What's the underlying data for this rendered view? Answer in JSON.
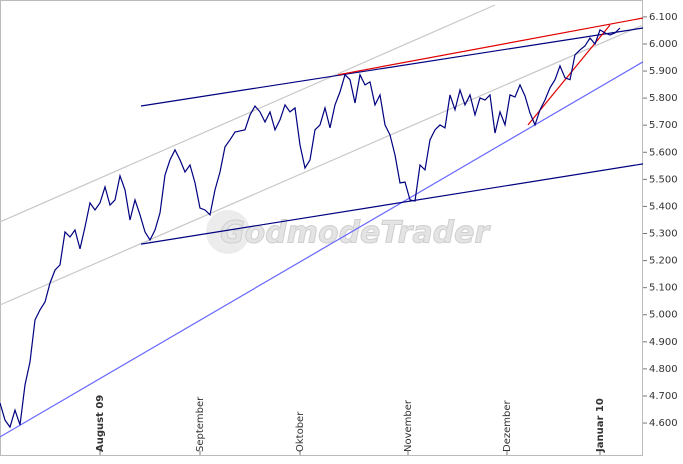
{
  "chart_data": {
    "type": "line",
    "watermark": "GodmodeTrader",
    "x": [
      0,
      1,
      2,
      3,
      4,
      5,
      6,
      7,
      8,
      9,
      10,
      11,
      12,
      13,
      14,
      15,
      16,
      17,
      18,
      19,
      20,
      21,
      22,
      23,
      24,
      25,
      26,
      27,
      28,
      29,
      30,
      31,
      32,
      33,
      34,
      35,
      36,
      37,
      38,
      39,
      40,
      41,
      42,
      43,
      44,
      45,
      46,
      47,
      48,
      49,
      50,
      51,
      52,
      53,
      54,
      55,
      56,
      57,
      58,
      59,
      60,
      61,
      62,
      63,
      64,
      65,
      66,
      67,
      68,
      69,
      70,
      71,
      72,
      73,
      74,
      75,
      76,
      77,
      78,
      79,
      80,
      81,
      82,
      83,
      84,
      85,
      86,
      87,
      88,
      89,
      90,
      91,
      92,
      93,
      94,
      95,
      96,
      97,
      98,
      99,
      100,
      101,
      102,
      103,
      104,
      105,
      106,
      107,
      108,
      109,
      110,
      111,
      112,
      113,
      114,
      115,
      116,
      117,
      118,
      119,
      120,
      121,
      122,
      123,
      124
    ],
    "series": [
      {
        "color": "#000080",
        "values": [
          4674,
          4611,
          4585,
          4648,
          4593,
          4741,
          4826,
          4981,
          5018,
          5047,
          5117,
          5165,
          5184,
          5306,
          5287,
          5313,
          5243,
          5324,
          5413,
          5387,
          5413,
          5472,
          5405,
          5424,
          5513,
          5461,
          5350,
          5424,
          5369,
          5306,
          5276,
          5313,
          5376,
          5516,
          5572,
          5609,
          5572,
          5527,
          5553,
          5487,
          5394,
          5387,
          5369,
          5461,
          5527,
          5620,
          5646,
          5675,
          5679,
          5683,
          5738,
          5771,
          5749,
          5712,
          5749,
          5683,
          5720,
          5775,
          5749,
          5764,
          5627,
          5542,
          5572,
          5683,
          5701,
          5764,
          5690,
          5775,
          5823,
          5886,
          5868,
          5782,
          5886,
          5849,
          5860,
          5775,
          5812,
          5701,
          5664,
          5590,
          5487,
          5490,
          5424,
          5420,
          5553,
          5535,
          5646,
          5683,
          5701,
          5690,
          5812,
          5757,
          5830,
          5775,
          5812,
          5738,
          5801,
          5793,
          5812,
          5671,
          5749,
          5701,
          5812,
          5804,
          5849,
          5808,
          5745,
          5701,
          5757,
          5793,
          5838,
          5868,
          5919,
          5875,
          5868,
          5960,
          5978,
          5993,
          6022,
          6000,
          6052,
          6041,
          6033,
          6041,
          6059
        ]
      }
    ],
    "trend_lines": [
      {
        "color": "#c8c8c8",
        "x": [
          0,
          99
        ],
        "y": [
          5343,
          6144
        ]
      },
      {
        "color": "#c8c8c8",
        "x": [
          0,
          128.6
        ],
        "y": [
          5036,
          6070
        ]
      },
      {
        "color": "#6666ff",
        "x": [
          0,
          128.6
        ],
        "y": [
          4549,
          5934
        ]
      },
      {
        "color": "#000080",
        "x": [
          28.2,
          128.6
        ],
        "y": [
          5771,
          6059
        ]
      },
      {
        "color": "#000080",
        "x": [
          28.2,
          128.6
        ],
        "y": [
          5261,
          5557
        ]
      },
      {
        "color": "#e00000",
        "x": [
          67.6,
          128.6
        ],
        "y": [
          5886,
          6096
        ]
      },
      {
        "color": "#e00000",
        "x": [
          105.6,
          122
        ],
        "y": [
          5701,
          6070
        ]
      }
    ],
    "xlim": [
      0,
      128.6
    ],
    "xticks": [
      {
        "value": 20,
        "label": "August 09"
      },
      {
        "value": 40,
        "label": "September"
      },
      {
        "value": 60,
        "label": "Oktober"
      },
      {
        "value": 81.6,
        "label": "November"
      },
      {
        "value": 101.4,
        "label": "Dezember"
      },
      {
        "value": 120,
        "label": "Januar 10"
      }
    ],
    "ylim": [
      4482,
      6155
    ],
    "yticks": [
      {
        "value": 4600,
        "label": "4.600"
      },
      {
        "value": 4700,
        "label": "4.700"
      },
      {
        "value": 4800,
        "label": "4.800"
      },
      {
        "value": 4900,
        "label": "4.900"
      },
      {
        "value": 5000,
        "label": "5.000"
      },
      {
        "value": 5100,
        "label": "5.100"
      },
      {
        "value": 5200,
        "label": "5.200"
      },
      {
        "value": 5300,
        "label": "5.300"
      },
      {
        "value": 5400,
        "label": "5.400"
      },
      {
        "value": 5500,
        "label": "5.500"
      },
      {
        "value": 5600,
        "label": "5.600"
      },
      {
        "value": 5700,
        "label": "5.700"
      },
      {
        "value": 5800,
        "label": "5.800"
      },
      {
        "value": 5900,
        "label": "5.900"
      },
      {
        "value": 6000,
        "label": "6.000"
      },
      {
        "value": 6100,
        "label": "6.100"
      }
    ]
  }
}
